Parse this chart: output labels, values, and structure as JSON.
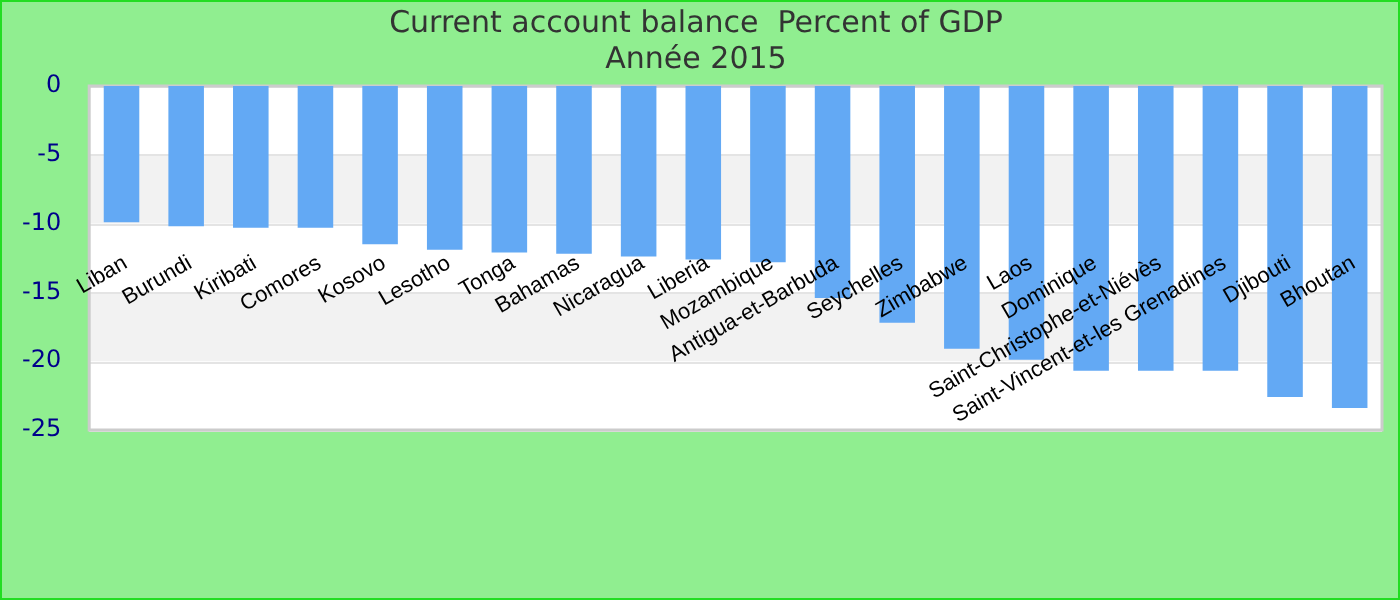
{
  "chart_data": {
    "type": "bar",
    "title": [
      "Current account balance  Percent of GDP",
      "Année 2015"
    ],
    "categories": [
      "Liban",
      "Burundi",
      "Kiribati",
      "Comores",
      "Kosovo",
      "Lesotho",
      "Tonga",
      "Bahamas",
      "Nicaragua",
      "Liberia",
      "Mozambique",
      "Antigua-et-Barbuda",
      "Seychelles",
      "Zimbabwe",
      "Laos",
      "Dominique",
      "Saint-Christophe-et-Niévès",
      "Saint-Vincent-et-les Grenadines",
      "Djibouti",
      "Bhoutan"
    ],
    "values": [
      -9.9,
      -10.2,
      -10.3,
      -10.3,
      -11.5,
      -11.9,
      -12.1,
      -12.2,
      -12.4,
      -12.6,
      -12.8,
      -15.4,
      -17.2,
      -19.1,
      -19.9,
      -20.7,
      -20.7,
      -20.7,
      -22.6,
      -23.4
    ],
    "color": "#63a9f4",
    "ylim": [
      -25,
      0
    ],
    "yticks": [
      -25,
      -20,
      -15,
      -10,
      -5,
      0
    ],
    "grid": "y",
    "legend": false
  }
}
